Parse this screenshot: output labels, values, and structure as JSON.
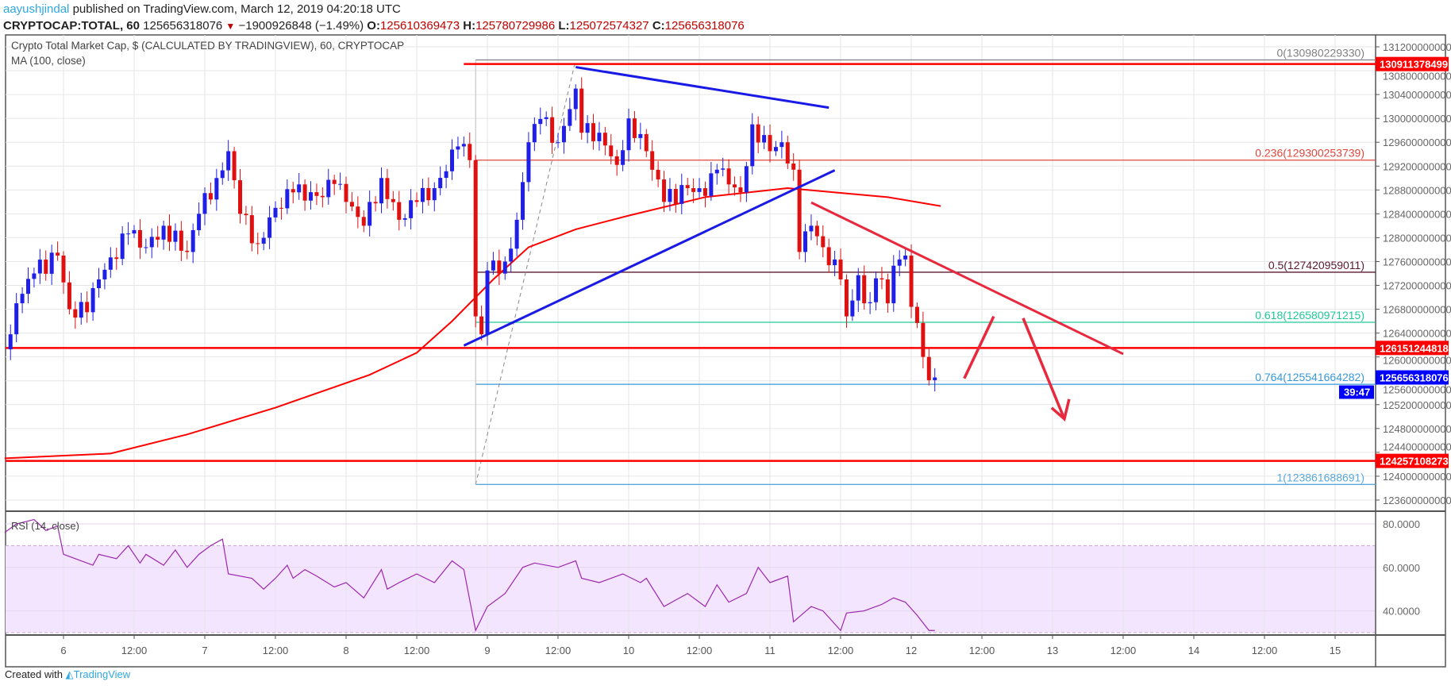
{
  "header": {
    "author": "aayushjindal",
    "published": " published on TradingView.com, March 12, 2019 04:20:18 UTC",
    "symbol": "CRYPTOCAP:TOTAL, 60",
    "last": "125656318076",
    "change": "−1900926848 (−1.49%)",
    "o_label": "O:",
    "o": "125610369473",
    "h_label": "H:",
    "h": "125780729986",
    "l_label": "L:",
    "l": "125072574327",
    "c_label": "C:",
    "c": "125656318076"
  },
  "legend": {
    "title": "Crypto Total Market Cap, $ (CALCULATED BY TRADINGVIEW), 60, CRYPTOCAP",
    "ma": "MA (100, close)",
    "rsi": "RSI (14, close)"
  },
  "footer": {
    "created": "Created with",
    "brand": "TradingView"
  },
  "colors": {
    "up": "#1f1fe8",
    "down": "#e01010",
    "ma": "#ff0000",
    "rsi": "#9c27b0",
    "rsi_band": "#f3e5fd",
    "level": "#ff0000",
    "trend_blue": "#1a1ae6",
    "trend_red": "#e8283c"
  },
  "chart_data": {
    "type": "candlestick",
    "price_axis": {
      "min": 123600000000,
      "max": 131200000000,
      "ticks": [
        "131200000000",
        "130800000000",
        "130400000000",
        "130000000000",
        "129600000000",
        "129200000000",
        "128800000000",
        "128400000000",
        "128000000000",
        "127600000000",
        "127200000000",
        "126800000000",
        "126400000000",
        "126000000000",
        "125600000000",
        "125200000000",
        "124800000000",
        "124400000000",
        "124000000000",
        "123600000000"
      ]
    },
    "time_axis": [
      "6",
      "12:00",
      "7",
      "12:00",
      "8",
      "12:00",
      "9",
      "12:00",
      "10",
      "12:00",
      "11",
      "12:00",
      "12",
      "12:00",
      "13",
      "12:00",
      "14",
      "12:00",
      "15"
    ],
    "close": [
      [
        "03-05 15:00",
        126380000000.0
      ],
      [
        "03-05 16:00",
        126900000000.0
      ],
      [
        "03-05 19:00",
        127400000000.0
      ],
      [
        "03-05 23:00",
        127700000000.0
      ],
      [
        "03-06 01:00",
        126800000000.0
      ],
      [
        "03-06 04:00",
        126750000000.0
      ],
      [
        "03-06 06:00",
        127300000000.0
      ],
      [
        "03-06 11:00",
        128070000000.0
      ],
      [
        "03-06 14:00",
        127840000000.0
      ],
      [
        "03-06 17:00",
        128200000000.0
      ],
      [
        "03-06 21:00",
        127760000000.0
      ],
      [
        "03-06 23:00",
        128400000000.0
      ],
      [
        "03-07 02:00",
        129000000000.0
      ],
      [
        "03-07 04:00",
        129450000000.0
      ],
      [
        "03-07 06:00",
        128400000000.0
      ],
      [
        "03-07 09:00",
        127900000000.0
      ],
      [
        "03-07 12:00",
        128500000000.0
      ],
      [
        "03-07 15:00",
        128760000000.0
      ],
      [
        "03-07 19:00",
        128700000000.0
      ],
      [
        "03-07 22:00",
        128900000000.0
      ],
      [
        "03-08 00:00",
        128600000000.0
      ],
      [
        "03-08 03:00",
        128200000000.0
      ],
      [
        "03-08 06:00",
        129000000000.0
      ],
      [
        "03-08 09:00",
        128300000000.0
      ],
      [
        "03-08 12:00",
        128600000000.0
      ],
      [
        "03-08 15:00",
        128830000000.0
      ],
      [
        "03-08 19:00",
        129530000000.0
      ],
      [
        "03-08 21:00",
        129300000000.0
      ],
      [
        "03-08 22:00",
        126680000000.0
      ],
      [
        "03-08 23:00",
        126380000000.0
      ],
      [
        "03-09 00:00",
        127450000000.0
      ],
      [
        "03-09 03:00",
        127600000000.0
      ],
      [
        "03-09 05:00",
        128300000000.0
      ],
      [
        "03-09 07:00",
        129600000000.0
      ],
      [
        "03-09 09:00",
        129990000000.0
      ],
      [
        "03-09 12:00",
        129600000000.0
      ],
      [
        "03-09 15:00",
        130500000000.0
      ],
      [
        "03-09 16:00",
        129760000000.0
      ],
      [
        "03-09 19:00",
        129760000000.0
      ],
      [
        "03-09 22:00",
        129220000000.0
      ],
      [
        "03-10 00:00",
        130000000000.0
      ],
      [
        "03-10 03:00",
        129450000000.0
      ],
      [
        "03-10 06:00",
        128600000000.0
      ],
      [
        "03-10 10:00",
        128830000000.0
      ],
      [
        "03-10 13:00",
        128700000000.0
      ],
      [
        "03-10 15:00",
        129140000000.0
      ],
      [
        "03-10 19:00",
        128760000000.0
      ],
      [
        "03-10 21:00",
        129900000000.0
      ],
      [
        "03-11 00:00",
        129450000000.0
      ],
      [
        "03-11 02:00",
        129600000000.0
      ],
      [
        "03-11 04:00",
        129140000000.0
      ],
      [
        "03-11 05:00",
        127760000000.0
      ],
      [
        "03-11 07:00",
        128200000000.0
      ],
      [
        "03-11 09:00",
        127840000000.0
      ],
      [
        "03-11 12:00",
        127300000000.0
      ],
      [
        "03-11 13:00",
        126680000000.0
      ],
      [
        "03-11 15:00",
        127370000000.0
      ],
      [
        "03-11 16:00",
        126900000000.0
      ],
      [
        "03-11 19:00",
        127300000000.0
      ],
      [
        "03-11 20:00",
        126900000000.0
      ],
      [
        "03-11 21:00",
        127530000000.0
      ],
      [
        "03-11 23:00",
        127700000000.0
      ],
      [
        "03-12 00:00",
        126840000000.0
      ],
      [
        "03-12 02:00",
        126000000000.0
      ],
      [
        "03-12 03:00",
        125610000000.0
      ],
      [
        "03-12 04:00",
        125656318076
      ]
    ],
    "ma100": [
      [
        "03-05 14:00",
        124300000000.0
      ],
      [
        "03-06 08:00",
        124380000000.0
      ],
      [
        "03-06 21:00",
        124700000000.0
      ],
      [
        "03-07 12:00",
        125150000000.0
      ],
      [
        "03-08 04:00",
        125700000000.0
      ],
      [
        "03-08 12:00",
        126070000000.0
      ],
      [
        "03-08 18:00",
        126600000000.0
      ],
      [
        "03-09 01:00",
        127300000000.0
      ],
      [
        "03-09 07:00",
        127840000000.0
      ],
      [
        "03-09 15:00",
        128140000000.0
      ],
      [
        "03-10 00:00",
        128370000000.0
      ],
      [
        "03-10 13:00",
        128680000000.0
      ],
      [
        "03-11 03:00",
        128830000000.0
      ],
      [
        "03-11 11:00",
        128760000000.0
      ],
      [
        "03-11 20:00",
        128680000000.0
      ],
      [
        "03-12 05:00",
        128530000000.0
      ]
    ],
    "levels": [
      {
        "value": 130911378499,
        "label": "130911378499",
        "from": "03-08 20:00"
      },
      {
        "value": 126151244818,
        "label": "126151244818"
      },
      {
        "value": 124257108273,
        "label": "124257108273"
      }
    ],
    "last_price": {
      "value": 125656318076,
      "label": "125656318076",
      "countdown": "39:47"
    },
    "fib": {
      "from": "03-08 22:00",
      "levels": [
        {
          "ratio": "0",
          "value": 130980229330,
          "label": "0(130980229330)",
          "color": "#808080"
        },
        {
          "ratio": "0.236",
          "value": 129300253739,
          "label": "0.236(129300253739)",
          "color": "#e0463c"
        },
        {
          "ratio": "0.5",
          "value": 127420959011,
          "label": "0.5(127420959011)",
          "color": "#5a1a30"
        },
        {
          "ratio": "0.618",
          "value": 126580971215,
          "label": "0.618(126580971215)",
          "color": "#22c997"
        },
        {
          "ratio": "0.764",
          "value": 125541664282,
          "label": "0.764(125541664282)",
          "color": "#3898d8"
        },
        {
          "ratio": "1",
          "value": 123861688691,
          "label": "1(123861688691)",
          "color": "#5aa8dc"
        }
      ],
      "diagonal": [
        [
          "03-08 22:00",
          123860000000.0
        ],
        [
          "03-09 15:00",
          130980000000.0
        ]
      ]
    },
    "trendlines": [
      {
        "color": "blue",
        "points": [
          [
            "03-09 15:00",
            130860000000.0
          ],
          [
            "03-11 10:00",
            130180000000.0
          ]
        ]
      },
      {
        "color": "blue",
        "points": [
          [
            "03-08 20:00",
            126190000000.0
          ],
          [
            "03-11 11:00",
            129130000000.0
          ]
        ]
      },
      {
        "color": "red",
        "points": [
          [
            "03-11 07:00",
            128590000000.0
          ],
          [
            "03-13 12:00",
            126050000000.0
          ]
        ]
      }
    ],
    "arrows": [
      {
        "color": "red",
        "points": [
          [
            "03-12 09:00",
            125640000000.0
          ],
          [
            "03-12 14:00",
            126680000000.0
          ]
        ]
      },
      {
        "color": "red",
        "points": [
          [
            "03-12 19:00",
            126650000000.0
          ],
          [
            "03-13 02:00",
            124960000000.0
          ]
        ],
        "head": true
      }
    ],
    "rsi": {
      "ticks": [
        "80.0000",
        "60.0000",
        "40.0000"
      ],
      "band": [
        30,
        70
      ],
      "values": [
        [
          "03-05 14:00",
          76
        ],
        [
          "03-05 16:00",
          80
        ],
        [
          "03-05 19:00",
          82
        ],
        [
          "03-05 21:00",
          77
        ],
        [
          "03-05 23:00",
          79
        ],
        [
          "03-06 00:00",
          66
        ],
        [
          "03-06 03:00",
          63
        ],
        [
          "03-06 05:00",
          61
        ],
        [
          "03-06 06:00",
          66
        ],
        [
          "03-06 09:00",
          64
        ],
        [
          "03-06 11:00",
          70
        ],
        [
          "03-06 13:00",
          62
        ],
        [
          "03-06 14:00",
          66
        ],
        [
          "03-06 17:00",
          61
        ],
        [
          "03-06 19:00",
          68
        ],
        [
          "03-06 21:00",
          60
        ],
        [
          "03-06 23:00",
          66
        ],
        [
          "03-07 01:00",
          70
        ],
        [
          "03-07 03:00",
          73
        ],
        [
          "03-07 04:00",
          57
        ],
        [
          "03-07 08:00",
          55
        ],
        [
          "03-07 10:00",
          50
        ],
        [
          "03-07 12:00",
          55
        ],
        [
          "03-07 14:00",
          61
        ],
        [
          "03-07 15:00",
          55
        ],
        [
          "03-07 17:00",
          59
        ],
        [
          "03-07 19:00",
          56
        ],
        [
          "03-07 22:00",
          51
        ],
        [
          "03-08 00:00",
          53
        ],
        [
          "03-08 03:00",
          46
        ],
        [
          "03-08 06:00",
          59
        ],
        [
          "03-08 07:00",
          50
        ],
        [
          "03-08 09:00",
          53
        ],
        [
          "03-08 12:00",
          57
        ],
        [
          "03-08 15:00",
          53
        ],
        [
          "03-08 18:00",
          63
        ],
        [
          "03-08 20:00",
          59
        ],
        [
          "03-08 22:00",
          31
        ],
        [
          "03-09 00:00",
          42
        ],
        [
          "03-09 03:00",
          48
        ],
        [
          "03-09 06:00",
          60
        ],
        [
          "03-09 08:00",
          62
        ],
        [
          "03-09 12:00",
          60
        ],
        [
          "03-09 15:00",
          63
        ],
        [
          "03-09 16:00",
          55
        ],
        [
          "03-09 19:00",
          53
        ],
        [
          "03-09 23:00",
          57
        ],
        [
          "03-10 02:00",
          53
        ],
        [
          "03-10 03:00",
          55
        ],
        [
          "03-10 06:00",
          42
        ],
        [
          "03-10 08:00",
          45
        ],
        [
          "03-10 10:00",
          48
        ],
        [
          "03-10 13:00",
          42
        ],
        [
          "03-10 15:00",
          52
        ],
        [
          "03-10 17:00",
          44
        ],
        [
          "03-10 20:00",
          48
        ],
        [
          "03-10 22:00",
          60
        ],
        [
          "03-11 00:00",
          53
        ],
        [
          "03-11 03:00",
          56
        ],
        [
          "03-11 04:00",
          35
        ],
        [
          "03-11 07:00",
          42
        ],
        [
          "03-11 09:00",
          40
        ],
        [
          "03-11 12:00",
          31
        ],
        [
          "03-11 13:00",
          39
        ],
        [
          "03-11 16:00",
          40
        ],
        [
          "03-11 19:00",
          43
        ],
        [
          "03-11 21:00",
          46
        ],
        [
          "03-11 23:00",
          44
        ],
        [
          "03-12 01:00",
          38
        ],
        [
          "03-12 03:00",
          31
        ],
        [
          "03-12 04:00",
          31
        ]
      ]
    }
  }
}
